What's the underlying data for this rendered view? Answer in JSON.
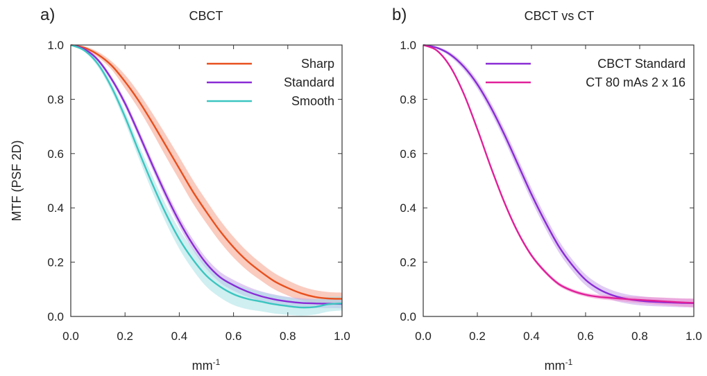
{
  "figure": {
    "ylabel": "MTF (PSF 2D)",
    "xlabel_base": "mm",
    "xlabel_sup": "-1"
  },
  "chart_data": [
    {
      "type": "line",
      "panel_letter": "a)",
      "title": "CBCT",
      "xlabel": "mm-1",
      "ylabel": "MTF (PSF 2D)",
      "xlim": [
        0,
        1
      ],
      "ylim": [
        0,
        1
      ],
      "xticks": [
        "0.0",
        "0.2",
        "0.4",
        "0.6",
        "0.8",
        "1.0"
      ],
      "yticks": [
        "0.0",
        "0.2",
        "0.4",
        "0.6",
        "0.8",
        "1.0"
      ],
      "grid": false,
      "legend_position": "top-right",
      "x": [
        0.0,
        0.05,
        0.1,
        0.15,
        0.2,
        0.25,
        0.3,
        0.35,
        0.4,
        0.45,
        0.5,
        0.55,
        0.6,
        0.65,
        0.7,
        0.75,
        0.8,
        0.85,
        0.9,
        0.95,
        1.0
      ],
      "series": [
        {
          "name": "Sharp",
          "color": "#e8501e",
          "band_color": "#f5a08a",
          "values": [
            1.0,
            0.99,
            0.965,
            0.925,
            0.865,
            0.795,
            0.715,
            0.63,
            0.545,
            0.46,
            0.385,
            0.315,
            0.255,
            0.205,
            0.165,
            0.13,
            0.105,
            0.085,
            0.072,
            0.066,
            0.065
          ],
          "band": [
            0.0,
            0.005,
            0.01,
            0.015,
            0.025,
            0.03,
            0.035,
            0.04,
            0.042,
            0.043,
            0.042,
            0.04,
            0.038,
            0.035,
            0.032,
            0.03,
            0.028,
            0.026,
            0.025,
            0.024,
            0.023
          ]
        },
        {
          "name": "Standard",
          "color": "#8a2bd6",
          "band_color": "#c7a2ea",
          "values": [
            1.0,
            0.985,
            0.945,
            0.875,
            0.785,
            0.675,
            0.56,
            0.45,
            0.35,
            0.265,
            0.195,
            0.145,
            0.115,
            0.092,
            0.075,
            0.063,
            0.055,
            0.05,
            0.048,
            0.047,
            0.046
          ],
          "band": [
            0.0,
            0.004,
            0.007,
            0.01,
            0.013,
            0.015,
            0.017,
            0.018,
            0.019,
            0.02,
            0.02,
            0.02,
            0.02,
            0.019,
            0.018,
            0.018,
            0.017,
            0.017,
            0.016,
            0.016,
            0.016
          ]
        },
        {
          "name": "Smooth",
          "color": "#3cc5c0",
          "band_color": "#a8e2e6",
          "values": [
            1.0,
            0.98,
            0.93,
            0.845,
            0.735,
            0.61,
            0.49,
            0.38,
            0.285,
            0.21,
            0.15,
            0.11,
            0.082,
            0.065,
            0.055,
            0.045,
            0.038,
            0.033,
            0.035,
            0.045,
            0.048
          ],
          "band": [
            0.0,
            0.005,
            0.01,
            0.015,
            0.02,
            0.025,
            0.03,
            0.033,
            0.036,
            0.038,
            0.04,
            0.04,
            0.04,
            0.038,
            0.036,
            0.034,
            0.032,
            0.03,
            0.028,
            0.027,
            0.026
          ]
        }
      ]
    },
    {
      "type": "line",
      "panel_letter": "b)",
      "title": "CBCT vs CT",
      "xlabel": "mm-1",
      "ylabel": "",
      "xlim": [
        0,
        1
      ],
      "ylim": [
        0,
        1
      ],
      "xticks": [
        "0.0",
        "0.2",
        "0.4",
        "0.6",
        "0.8",
        "1.0"
      ],
      "yticks": [
        "0.0",
        "0.2",
        "0.4",
        "0.6",
        "0.8",
        "1.0"
      ],
      "grid": false,
      "legend_position": "top-right",
      "x": [
        0.0,
        0.05,
        0.1,
        0.15,
        0.2,
        0.25,
        0.3,
        0.35,
        0.4,
        0.45,
        0.5,
        0.55,
        0.6,
        0.65,
        0.7,
        0.75,
        0.8,
        0.85,
        0.9,
        0.95,
        1.0
      ],
      "series": [
        {
          "name": "CBCT Standard",
          "color": "#8a2bd6",
          "band_color": "#c7a2ea",
          "values": [
            1.0,
            0.99,
            0.965,
            0.92,
            0.855,
            0.77,
            0.67,
            0.56,
            0.45,
            0.35,
            0.26,
            0.19,
            0.135,
            0.1,
            0.078,
            0.065,
            0.058,
            0.054,
            0.052,
            0.05,
            0.049
          ],
          "band": [
            0.0,
            0.004,
            0.008,
            0.012,
            0.015,
            0.018,
            0.02,
            0.022,
            0.023,
            0.023,
            0.022,
            0.021,
            0.02,
            0.019,
            0.018,
            0.017,
            0.017,
            0.016,
            0.016,
            0.016,
            0.016
          ]
        },
        {
          "name": "CT 80 mAs 2 x 16",
          "color": "#e0209a",
          "band_color": "#f08ccc",
          "values": [
            1.0,
            0.98,
            0.92,
            0.82,
            0.69,
            0.55,
            0.42,
            0.31,
            0.225,
            0.165,
            0.12,
            0.095,
            0.08,
            0.072,
            0.068,
            0.064,
            0.061,
            0.058,
            0.055,
            0.052,
            0.05
          ],
          "band": [
            0.0,
            0.003,
            0.005,
            0.006,
            0.007,
            0.007,
            0.007,
            0.007,
            0.007,
            0.007,
            0.007,
            0.007,
            0.007,
            0.008,
            0.009,
            0.01,
            0.012,
            0.013,
            0.014,
            0.015,
            0.016
          ]
        }
      ]
    }
  ]
}
